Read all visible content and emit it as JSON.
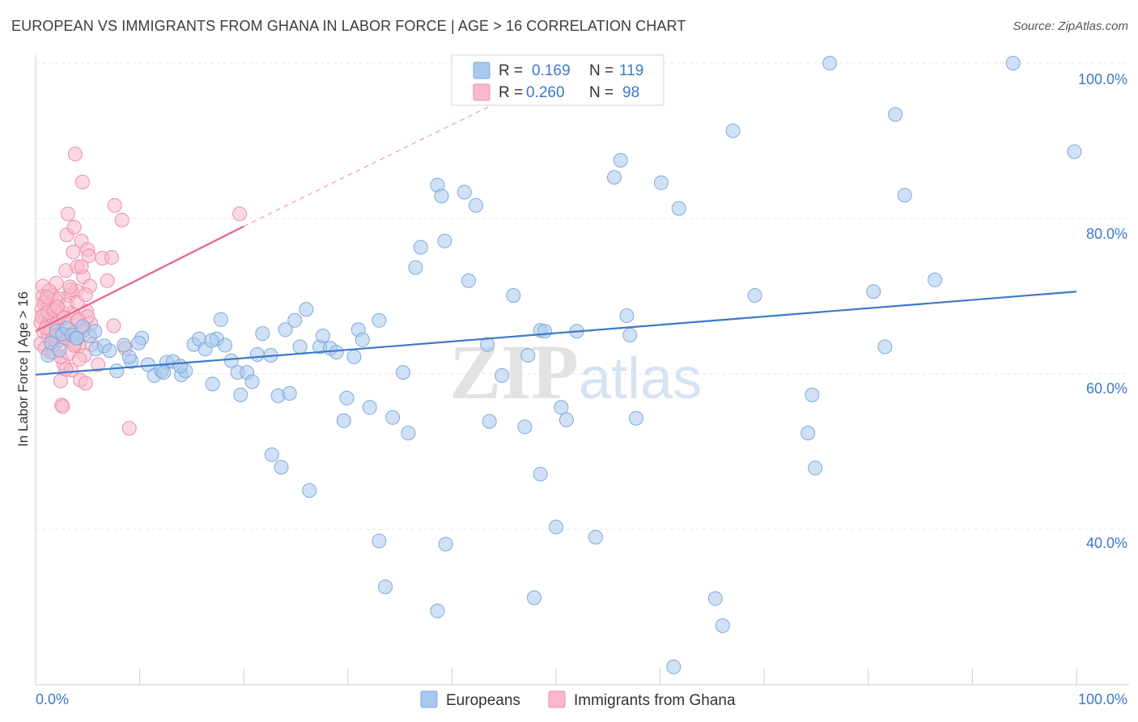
{
  "title": "EUROPEAN VS IMMIGRANTS FROM GHANA IN LABOR FORCE | AGE > 16 CORRELATION CHART",
  "source": "Source: ZipAtlas.com",
  "watermark": {
    "zip": "ZIP",
    "atlas": "atlas"
  },
  "legend": {
    "r_label": "R =",
    "n_label": "N =",
    "rows": [
      {
        "r": "0.169",
        "n": "119",
        "color": "#a9c8ee"
      },
      {
        "r": "0.260",
        "n": "98",
        "color": "#f7b9cb"
      }
    ]
  },
  "bottom_legend": [
    {
      "label": "Europeans",
      "color": "#a9c8ee"
    },
    {
      "label": "Immigrants from Ghana",
      "color": "#f7b9cb"
    }
  ],
  "chart_data": {
    "type": "scatter",
    "title": "EUROPEAN VS IMMIGRANTS FROM GHANA IN LABOR FORCE | AGE > 16 CORRELATION CHART",
    "ylabel": "In Labor Force | Age > 16",
    "xlabel": "",
    "x_tick_labels": [
      "0.0%",
      "100.0%"
    ],
    "y_tick_labels": [
      "40.0%",
      "60.0%",
      "80.0%",
      "100.0%"
    ],
    "xlim": [
      0,
      100
    ],
    "ylim": [
      20,
      101
    ],
    "grid": true,
    "colors": {
      "europeans": "#3d78c8",
      "ghana": "#e8638f"
    },
    "series": [
      {
        "name": "Europeans",
        "regression": {
          "x": [
            0,
            100
          ],
          "y": [
            59.9,
            70.6
          ]
        },
        "points": [
          [
            1.2,
            62.4
          ],
          [
            1.5,
            64.0
          ],
          [
            2.0,
            65.5
          ],
          [
            2.6,
            65.1
          ],
          [
            3.0,
            65.9
          ],
          [
            3.5,
            65.0
          ],
          [
            4.0,
            64.6
          ],
          [
            4.5,
            66.1
          ],
          [
            5.2,
            64.9
          ],
          [
            5.8,
            63.2
          ],
          [
            6.6,
            63.6
          ],
          [
            7.1,
            63.0
          ],
          [
            7.8,
            60.4
          ],
          [
            8.5,
            63.7
          ],
          [
            9.2,
            61.6
          ],
          [
            10.2,
            64.6
          ],
          [
            10.8,
            61.2
          ],
          [
            11.4,
            59.8
          ],
          [
            12.1,
            60.4
          ],
          [
            12.6,
            61.5
          ],
          [
            13.2,
            61.6
          ],
          [
            14.0,
            59.9
          ],
          [
            14.4,
            60.4
          ],
          [
            15.2,
            63.8
          ],
          [
            15.7,
            64.5
          ],
          [
            16.3,
            63.2
          ],
          [
            17.0,
            58.7
          ],
          [
            17.4,
            64.5
          ],
          [
            17.8,
            67.0
          ],
          [
            18.2,
            63.7
          ],
          [
            18.8,
            61.7
          ],
          [
            19.4,
            60.2
          ],
          [
            19.7,
            57.3
          ],
          [
            20.3,
            60.2
          ],
          [
            20.8,
            59.0
          ],
          [
            21.3,
            62.5
          ],
          [
            21.8,
            65.2
          ],
          [
            22.6,
            62.4
          ],
          [
            23.3,
            57.2
          ],
          [
            24.4,
            57.5
          ],
          [
            24.0,
            65.7
          ],
          [
            24.9,
            66.9
          ],
          [
            25.4,
            63.5
          ],
          [
            26.0,
            68.3
          ],
          [
            27.3,
            63.5
          ],
          [
            27.6,
            64.9
          ],
          [
            28.3,
            63.3
          ],
          [
            28.9,
            62.8
          ],
          [
            29.6,
            54.0
          ],
          [
            29.9,
            56.9
          ],
          [
            30.6,
            62.2
          ],
          [
            31.0,
            65.7
          ],
          [
            32.1,
            55.7
          ],
          [
            33.0,
            66.9
          ],
          [
            34.3,
            54.4
          ],
          [
            35.8,
            52.4
          ],
          [
            35.3,
            60.2
          ],
          [
            36.5,
            73.7
          ],
          [
            37.0,
            76.3
          ],
          [
            38.6,
            84.3
          ],
          [
            39.0,
            82.9
          ],
          [
            39.3,
            77.1
          ],
          [
            41.2,
            83.4
          ],
          [
            41.6,
            72.0
          ],
          [
            42.3,
            81.7
          ],
          [
            43.4,
            63.8
          ],
          [
            43.6,
            53.9
          ],
          [
            44.8,
            59.8
          ],
          [
            45.9,
            70.1
          ],
          [
            47.3,
            62.4
          ],
          [
            47.0,
            53.2
          ],
          [
            48.5,
            65.6
          ],
          [
            48.9,
            65.5
          ],
          [
            48.5,
            47.1
          ],
          [
            50.0,
            40.3
          ],
          [
            50.5,
            55.7
          ],
          [
            51.0,
            54.1
          ],
          [
            52.0,
            65.5
          ],
          [
            53.8,
            39.0
          ],
          [
            56.8,
            67.5
          ],
          [
            55.6,
            85.3
          ],
          [
            56.2,
            87.5
          ],
          [
            57.7,
            54.3
          ],
          [
            57.1,
            65.0
          ],
          [
            60.1,
            84.6
          ],
          [
            61.8,
            81.3
          ],
          [
            66.0,
            27.6
          ],
          [
            67.0,
            91.3
          ],
          [
            69.1,
            70.1
          ],
          [
            74.2,
            52.4
          ],
          [
            74.6,
            57.3
          ],
          [
            74.9,
            47.9
          ],
          [
            81.6,
            63.5
          ],
          [
            80.5,
            70.6
          ],
          [
            82.6,
            93.4
          ],
          [
            83.5,
            83.0
          ],
          [
            86.4,
            72.1
          ],
          [
            93.9,
            100.0
          ],
          [
            99.8,
            88.6
          ],
          [
            65.3,
            31.1
          ],
          [
            61.3,
            22.3
          ],
          [
            47.9,
            31.2
          ],
          [
            39.4,
            38.1
          ],
          [
            38.6,
            29.5
          ],
          [
            33.0,
            38.5
          ],
          [
            33.6,
            32.6
          ],
          [
            31.4,
            64.4
          ],
          [
            26.3,
            45.0
          ],
          [
            22.7,
            49.6
          ],
          [
            23.6,
            48.0
          ],
          [
            16.9,
            64.3
          ],
          [
            13.9,
            61.0
          ],
          [
            9.9,
            64.0
          ],
          [
            12.3,
            60.2
          ],
          [
            9.0,
            62.2
          ],
          [
            5.7,
            65.5
          ],
          [
            3.9,
            64.6
          ],
          [
            2.3,
            63.1
          ],
          [
            76.3,
            100.0
          ]
        ]
      },
      {
        "name": "Immigrants from Ghana",
        "regression": {
          "x": [
            0,
            20
          ],
          "y": [
            65.5,
            79.0
          ]
        },
        "regression_dashed": {
          "x": [
            20,
            46
          ],
          "y": [
            79.0,
            96.0
          ]
        },
        "points": [
          [
            0.5,
            66.6
          ],
          [
            0.6,
            68.3
          ],
          [
            0.7,
            70.0
          ],
          [
            0.8,
            65.4
          ],
          [
            0.9,
            67.6
          ],
          [
            1.0,
            69.3
          ],
          [
            1.1,
            66.2
          ],
          [
            1.2,
            64.8
          ],
          [
            1.3,
            68.7
          ],
          [
            1.4,
            67.0
          ],
          [
            1.5,
            65.6
          ],
          [
            1.6,
            70.2
          ],
          [
            1.7,
            66.7
          ],
          [
            1.8,
            63.8
          ],
          [
            1.9,
            69.6
          ],
          [
            2.0,
            71.7
          ],
          [
            2.1,
            65.1
          ],
          [
            2.2,
            67.3
          ],
          [
            2.3,
            64.4
          ],
          [
            2.4,
            59.1
          ],
          [
            2.5,
            56.0
          ],
          [
            2.6,
            55.8
          ],
          [
            2.7,
            61.3
          ],
          [
            2.8,
            66.0
          ],
          [
            2.9,
            73.3
          ],
          [
            3.0,
            77.9
          ],
          [
            3.1,
            80.6
          ],
          [
            3.2,
            70.1
          ],
          [
            3.3,
            64.4
          ],
          [
            3.4,
            60.5
          ],
          [
            3.5,
            67.8
          ],
          [
            3.6,
            75.7
          ],
          [
            3.7,
            78.9
          ],
          [
            3.8,
            88.3
          ],
          [
            3.9,
            70.7
          ],
          [
            4.0,
            73.8
          ],
          [
            4.1,
            66.8
          ],
          [
            4.2,
            63.6
          ],
          [
            4.3,
            59.2
          ],
          [
            4.4,
            77.1
          ],
          [
            4.5,
            84.7
          ],
          [
            4.6,
            72.5
          ],
          [
            4.7,
            62.4
          ],
          [
            4.8,
            58.8
          ],
          [
            4.9,
            68.1
          ],
          [
            5.0,
            76.0
          ],
          [
            5.1,
            75.2
          ],
          [
            5.2,
            71.3
          ],
          [
            5.3,
            66.5
          ],
          [
            5.4,
            63.8
          ],
          [
            6.0,
            61.2
          ],
          [
            6.4,
            74.9
          ],
          [
            6.9,
            72.0
          ],
          [
            7.3,
            75.0
          ],
          [
            7.5,
            66.2
          ],
          [
            7.6,
            81.7
          ],
          [
            8.3,
            79.8
          ],
          [
            8.6,
            63.3
          ],
          [
            9.0,
            53.0
          ],
          [
            19.6,
            80.6
          ],
          [
            0.5,
            63.9
          ],
          [
            0.6,
            67.4
          ],
          [
            0.8,
            69.1
          ],
          [
            1.0,
            65.9
          ],
          [
            1.2,
            67.9
          ],
          [
            1.4,
            62.8
          ],
          [
            1.6,
            64.4
          ],
          [
            1.8,
            68.2
          ],
          [
            2.0,
            66.4
          ],
          [
            2.2,
            69.7
          ],
          [
            2.4,
            62.2
          ],
          [
            2.6,
            67.9
          ],
          [
            2.8,
            64.7
          ],
          [
            3.0,
            68.9
          ],
          [
            3.2,
            62.6
          ],
          [
            3.4,
            70.8
          ],
          [
            3.6,
            65.3
          ],
          [
            3.8,
            64.0
          ],
          [
            4.0,
            69.2
          ],
          [
            4.2,
            61.9
          ],
          [
            4.4,
            73.8
          ],
          [
            4.6,
            66.0
          ],
          [
            4.8,
            70.2
          ],
          [
            5.0,
            67.4
          ],
          [
            0.7,
            71.3
          ],
          [
            0.9,
            63.3
          ],
          [
            1.3,
            70.7
          ],
          [
            1.7,
            62.8
          ],
          [
            2.1,
            68.6
          ],
          [
            2.5,
            65.2
          ],
          [
            2.9,
            60.6
          ],
          [
            3.3,
            71.2
          ],
          [
            3.7,
            63.7
          ],
          [
            4.1,
            67.0
          ],
          [
            4.5,
            65.5
          ],
          [
            1.1,
            69.9
          ],
          [
            1.9,
            64.9
          ],
          [
            2.7,
            67.2
          ]
        ]
      }
    ]
  }
}
